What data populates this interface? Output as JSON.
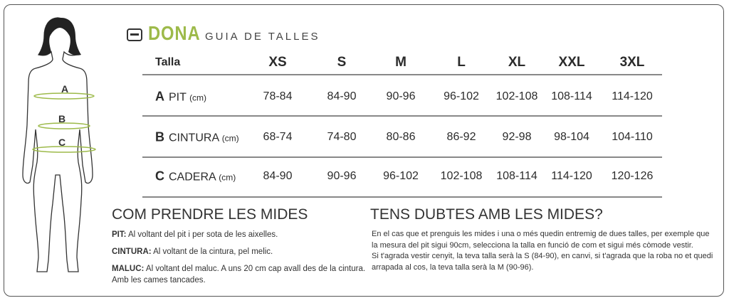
{
  "header": {
    "brand": "DONA",
    "subtitle": "GUIA DE TALLES",
    "logo_icon": "brand-logo-icon",
    "accent_color": "#9dba4a"
  },
  "figure": {
    "labels": [
      "A",
      "B",
      "C"
    ]
  },
  "table": {
    "header_label": "Talla",
    "sizes": [
      "XS",
      "S",
      "M",
      "L",
      "XL",
      "XXL",
      "3XL"
    ],
    "rows": [
      {
        "letter": "A",
        "name": "PIT",
        "unit": "(cm)",
        "values": [
          "78-84",
          "84-90",
          "90-96",
          "96-102",
          "102-108",
          "108-114",
          "114-120"
        ]
      },
      {
        "letter": "B",
        "name": "CINTURA",
        "unit": "(cm)",
        "values": [
          "68-74",
          "74-80",
          "80-86",
          "86-92",
          "92-98",
          "98-104",
          "104-110"
        ]
      },
      {
        "letter": "C",
        "name": "CADERA",
        "unit": "(cm)",
        "values": [
          "84-90",
          "90-96",
          "96-102",
          "102-108",
          "108-114",
          "114-120",
          "120-126"
        ]
      }
    ]
  },
  "how_to": {
    "title": "COM PRENDRE LES MIDES",
    "items": [
      {
        "term": "PIT:",
        "text": " Al voltant del pit i per sota de les aixelles."
      },
      {
        "term": "CINTURA:",
        "text": " Al voltant de la cintura, pel melic."
      },
      {
        "term": "MALUC:",
        "text": " Al voltant del maluc. A uns 20 cm cap avall des de la cintura."
      }
    ],
    "extra": "Amb les cames tancades."
  },
  "doubts": {
    "title": "TENS DUBTES AMB LES MIDES?",
    "lines": [
      "En el cas que et prenguis les mides i una o més quedin entremig de dues talles, per exemple que",
      "la mesura del pit sigui 90cm, selecciona la talla en funció de com et sigui més còmode vestir.",
      "Si t'agrada vestir cenyit, la teva talla serà la S (84-90), en canvi, si t'agrada que la roba no et quedi",
      "arrapada al cos, la teva talla serà la M (90-96)."
    ]
  }
}
